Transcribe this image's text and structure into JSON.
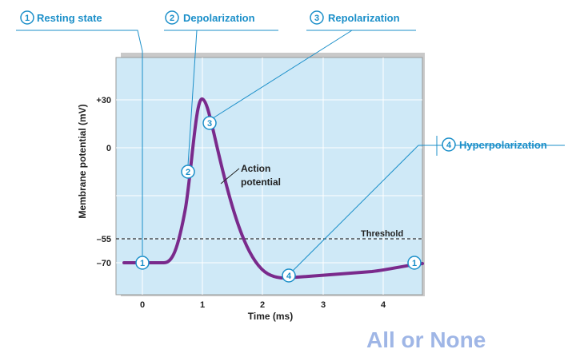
{
  "title_labels": {
    "stage1": {
      "num": "1",
      "label": "Resting state"
    },
    "stage2": {
      "num": "2",
      "label": "Depolarization"
    },
    "stage3": {
      "num": "3",
      "label": "Repolarization"
    },
    "stage4": {
      "num": "4",
      "label": "Hyperpolarization"
    }
  },
  "axes": {
    "ylabel": "Membrane potential (mV)",
    "xlabel": "Time (ms)",
    "y_ticks": [
      "+30",
      "0",
      "–55",
      "–70"
    ],
    "x_ticks": [
      "0",
      "1",
      "2",
      "3",
      "4"
    ]
  },
  "annotations": {
    "action_potential_line1": "Action",
    "action_potential_line2": "potential",
    "threshold": "Threshold"
  },
  "markers": [
    "1",
    "2",
    "3",
    "4",
    "1"
  ],
  "footer": "All or None",
  "colors": {
    "accent": "#1b8fc9",
    "plot_bg": "#cfe9f7",
    "curve": "#7a2a8c",
    "footer": "#9fb6e6"
  }
}
